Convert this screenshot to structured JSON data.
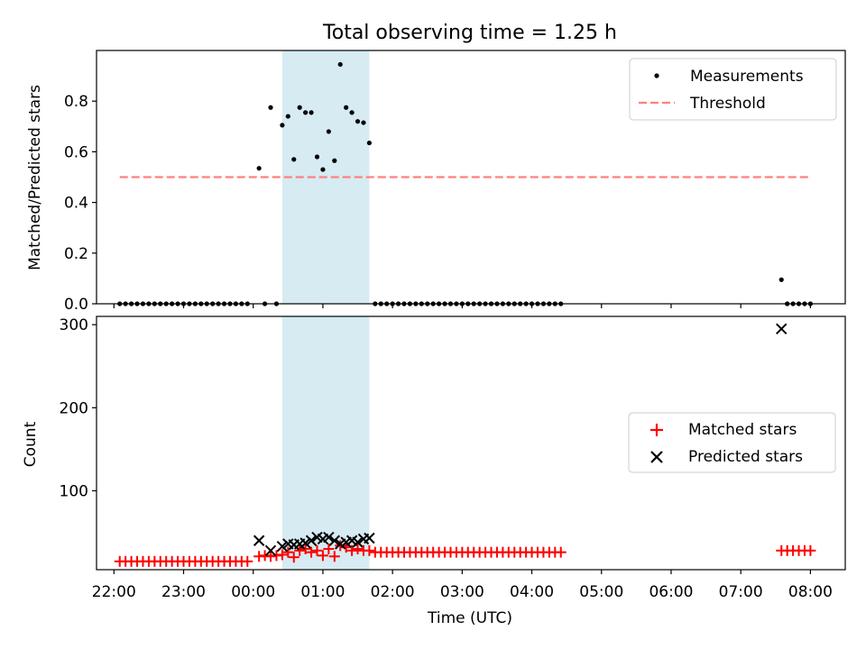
{
  "colors": {
    "measurements": "#000000",
    "threshold": "#ff7f7f",
    "matched": "#ff0000",
    "predicted": "#000000",
    "highlight": "#add8e6"
  },
  "chart_data": [
    {
      "type": "scatter",
      "title": "Total observing time = 1.25 h",
      "xlabel": "",
      "ylabel": "Matched/Predicted stars",
      "ylim": [
        0,
        1.0
      ],
      "yticks": [
        "0.0",
        "0.2",
        "0.4",
        "0.6",
        "0.8"
      ],
      "ytick_values": [
        0,
        0.2,
        0.4,
        0.6,
        0.8
      ],
      "xlim": [
        "21:45",
        "08:30"
      ],
      "highlight_span": [
        "00:25",
        "01:40"
      ],
      "legend_position": "upper right",
      "legend": [
        "Measurements",
        "Threshold"
      ],
      "threshold": {
        "value": 0.5,
        "x": [
          "22:05",
          "08:00"
        ]
      },
      "measurements": [
        {
          "x": "22:05",
          "y": 0
        },
        {
          "x": "22:10",
          "y": 0
        },
        {
          "x": "22:15",
          "y": 0
        },
        {
          "x": "22:20",
          "y": 0
        },
        {
          "x": "22:25",
          "y": 0
        },
        {
          "x": "22:30",
          "y": 0
        },
        {
          "x": "22:35",
          "y": 0
        },
        {
          "x": "22:40",
          "y": 0
        },
        {
          "x": "22:45",
          "y": 0
        },
        {
          "x": "22:50",
          "y": 0
        },
        {
          "x": "22:55",
          "y": 0
        },
        {
          "x": "23:00",
          "y": 0
        },
        {
          "x": "23:05",
          "y": 0
        },
        {
          "x": "23:10",
          "y": 0
        },
        {
          "x": "23:15",
          "y": 0
        },
        {
          "x": "23:20",
          "y": 0
        },
        {
          "x": "23:25",
          "y": 0
        },
        {
          "x": "23:30",
          "y": 0
        },
        {
          "x": "23:35",
          "y": 0
        },
        {
          "x": "23:40",
          "y": 0
        },
        {
          "x": "23:45",
          "y": 0
        },
        {
          "x": "23:50",
          "y": 0
        },
        {
          "x": "23:55",
          "y": 0
        },
        {
          "x": "00:05",
          "y": 0.535
        },
        {
          "x": "00:10",
          "y": 0
        },
        {
          "x": "00:15",
          "y": 0.775
        },
        {
          "x": "00:20",
          "y": 0
        },
        {
          "x": "00:25",
          "y": 0.705
        },
        {
          "x": "00:30",
          "y": 0.74
        },
        {
          "x": "00:35",
          "y": 0.57
        },
        {
          "x": "00:40",
          "y": 0.775
        },
        {
          "x": "00:45",
          "y": 0.755
        },
        {
          "x": "00:50",
          "y": 0.755
        },
        {
          "x": "00:55",
          "y": 0.58
        },
        {
          "x": "01:00",
          "y": 0.53
        },
        {
          "x": "01:05",
          "y": 0.68
        },
        {
          "x": "01:10",
          "y": 0.565
        },
        {
          "x": "01:15",
          "y": 0.945
        },
        {
          "x": "01:20",
          "y": 0.775
        },
        {
          "x": "01:25",
          "y": 0.755
        },
        {
          "x": "01:30",
          "y": 0.72
        },
        {
          "x": "01:35",
          "y": 0.715
        },
        {
          "x": "01:40",
          "y": 0.635
        },
        {
          "x": "01:45",
          "y": 0
        },
        {
          "x": "01:50",
          "y": 0
        },
        {
          "x": "01:55",
          "y": 0
        },
        {
          "x": "02:00",
          "y": 0
        },
        {
          "x": "02:05",
          "y": 0
        },
        {
          "x": "02:10",
          "y": 0
        },
        {
          "x": "02:15",
          "y": 0
        },
        {
          "x": "02:20",
          "y": 0
        },
        {
          "x": "02:25",
          "y": 0
        },
        {
          "x": "02:30",
          "y": 0
        },
        {
          "x": "02:35",
          "y": 0
        },
        {
          "x": "02:40",
          "y": 0
        },
        {
          "x": "02:45",
          "y": 0
        },
        {
          "x": "02:50",
          "y": 0
        },
        {
          "x": "02:55",
          "y": 0
        },
        {
          "x": "03:00",
          "y": 0
        },
        {
          "x": "03:05",
          "y": 0
        },
        {
          "x": "03:10",
          "y": 0
        },
        {
          "x": "03:15",
          "y": 0
        },
        {
          "x": "03:20",
          "y": 0
        },
        {
          "x": "03:25",
          "y": 0
        },
        {
          "x": "03:30",
          "y": 0
        },
        {
          "x": "03:35",
          "y": 0
        },
        {
          "x": "03:40",
          "y": 0
        },
        {
          "x": "03:45",
          "y": 0
        },
        {
          "x": "03:50",
          "y": 0
        },
        {
          "x": "03:55",
          "y": 0
        },
        {
          "x": "04:00",
          "y": 0
        },
        {
          "x": "04:05",
          "y": 0
        },
        {
          "x": "04:10",
          "y": 0
        },
        {
          "x": "04:15",
          "y": 0
        },
        {
          "x": "04:20",
          "y": 0
        },
        {
          "x": "04:25",
          "y": 0
        },
        {
          "x": "07:35",
          "y": 0.095
        },
        {
          "x": "07:40",
          "y": 0
        },
        {
          "x": "07:45",
          "y": 0
        },
        {
          "x": "07:50",
          "y": 0
        },
        {
          "x": "07:55",
          "y": 0
        },
        {
          "x": "08:00",
          "y": 0
        }
      ]
    },
    {
      "type": "scatter",
      "title": "",
      "xlabel": "Time (UTC)",
      "ylabel": "Count",
      "ylim": [
        5,
        310
      ],
      "yticks": [
        "100",
        "200",
        "300"
      ],
      "ytick_values": [
        100,
        200,
        300
      ],
      "xlim": [
        "21:45",
        "08:30"
      ],
      "xticks": [
        "22:00",
        "23:00",
        "00:00",
        "01:00",
        "02:00",
        "03:00",
        "04:00",
        "05:00",
        "06:00",
        "07:00",
        "08:00"
      ],
      "highlight_span": [
        "00:25",
        "01:40"
      ],
      "legend_position": "center right",
      "legend": [
        "Matched stars",
        "Predicted stars"
      ],
      "matched": [
        {
          "x": "22:05",
          "y": 15
        },
        {
          "x": "22:10",
          "y": 15
        },
        {
          "x": "22:15",
          "y": 15
        },
        {
          "x": "22:20",
          "y": 15
        },
        {
          "x": "22:25",
          "y": 15
        },
        {
          "x": "22:30",
          "y": 15
        },
        {
          "x": "22:35",
          "y": 15
        },
        {
          "x": "22:40",
          "y": 15
        },
        {
          "x": "22:45",
          "y": 15
        },
        {
          "x": "22:50",
          "y": 15
        },
        {
          "x": "22:55",
          "y": 15
        },
        {
          "x": "23:00",
          "y": 15
        },
        {
          "x": "23:05",
          "y": 15
        },
        {
          "x": "23:10",
          "y": 15
        },
        {
          "x": "23:15",
          "y": 15
        },
        {
          "x": "23:20",
          "y": 15
        },
        {
          "x": "23:25",
          "y": 15
        },
        {
          "x": "23:30",
          "y": 15
        },
        {
          "x": "23:35",
          "y": 15
        },
        {
          "x": "23:40",
          "y": 15
        },
        {
          "x": "23:45",
          "y": 15
        },
        {
          "x": "23:50",
          "y": 15
        },
        {
          "x": "23:55",
          "y": 15
        },
        {
          "x": "00:05",
          "y": 21
        },
        {
          "x": "00:10",
          "y": 22
        },
        {
          "x": "00:15",
          "y": 21
        },
        {
          "x": "00:20",
          "y": 22
        },
        {
          "x": "00:25",
          "y": 23
        },
        {
          "x": "00:30",
          "y": 26
        },
        {
          "x": "00:35",
          "y": 20
        },
        {
          "x": "00:40",
          "y": 28
        },
        {
          "x": "00:45",
          "y": 30
        },
        {
          "x": "00:50",
          "y": 26
        },
        {
          "x": "00:55",
          "y": 28
        },
        {
          "x": "01:00",
          "y": 22
        },
        {
          "x": "01:05",
          "y": 30
        },
        {
          "x": "01:10",
          "y": 21
        },
        {
          "x": "01:15",
          "y": 34
        },
        {
          "x": "01:20",
          "y": 32
        },
        {
          "x": "01:25",
          "y": 28
        },
        {
          "x": "01:30",
          "y": 30
        },
        {
          "x": "01:35",
          "y": 28
        },
        {
          "x": "01:40",
          "y": 28
        },
        {
          "x": "01:45",
          "y": 26
        },
        {
          "x": "01:50",
          "y": 26
        },
        {
          "x": "01:55",
          "y": 26
        },
        {
          "x": "02:00",
          "y": 26
        },
        {
          "x": "02:05",
          "y": 26
        },
        {
          "x": "02:10",
          "y": 26
        },
        {
          "x": "02:15",
          "y": 26
        },
        {
          "x": "02:20",
          "y": 26
        },
        {
          "x": "02:25",
          "y": 26
        },
        {
          "x": "02:30",
          "y": 26
        },
        {
          "x": "02:35",
          "y": 26
        },
        {
          "x": "02:40",
          "y": 26
        },
        {
          "x": "02:45",
          "y": 26
        },
        {
          "x": "02:50",
          "y": 26
        },
        {
          "x": "02:55",
          "y": 26
        },
        {
          "x": "03:00",
          "y": 26
        },
        {
          "x": "03:05",
          "y": 26
        },
        {
          "x": "03:10",
          "y": 26
        },
        {
          "x": "03:15",
          "y": 26
        },
        {
          "x": "03:20",
          "y": 26
        },
        {
          "x": "03:25",
          "y": 26
        },
        {
          "x": "03:30",
          "y": 26
        },
        {
          "x": "03:35",
          "y": 26
        },
        {
          "x": "03:40",
          "y": 26
        },
        {
          "x": "03:45",
          "y": 26
        },
        {
          "x": "03:50",
          "y": 26
        },
        {
          "x": "03:55",
          "y": 26
        },
        {
          "x": "04:00",
          "y": 26
        },
        {
          "x": "04:05",
          "y": 26
        },
        {
          "x": "04:10",
          "y": 26
        },
        {
          "x": "04:15",
          "y": 26
        },
        {
          "x": "04:20",
          "y": 26
        },
        {
          "x": "04:25",
          "y": 26
        },
        {
          "x": "07:35",
          "y": 28
        },
        {
          "x": "07:40",
          "y": 28
        },
        {
          "x": "07:45",
          "y": 28
        },
        {
          "x": "07:50",
          "y": 28
        },
        {
          "x": "07:55",
          "y": 28
        },
        {
          "x": "08:00",
          "y": 28
        }
      ],
      "predicted": [
        {
          "x": "00:05",
          "y": 40
        },
        {
          "x": "00:15",
          "y": 28
        },
        {
          "x": "00:25",
          "y": 33
        },
        {
          "x": "00:30",
          "y": 36
        },
        {
          "x": "00:35",
          "y": 35
        },
        {
          "x": "00:40",
          "y": 36
        },
        {
          "x": "00:45",
          "y": 37
        },
        {
          "x": "00:50",
          "y": 40
        },
        {
          "x": "00:55",
          "y": 44
        },
        {
          "x": "01:00",
          "y": 42
        },
        {
          "x": "01:05",
          "y": 44
        },
        {
          "x": "01:10",
          "y": 40
        },
        {
          "x": "01:15",
          "y": 36
        },
        {
          "x": "01:20",
          "y": 38
        },
        {
          "x": "01:25",
          "y": 40
        },
        {
          "x": "01:30",
          "y": 38
        },
        {
          "x": "01:35",
          "y": 42
        },
        {
          "x": "01:40",
          "y": 43
        },
        {
          "x": "07:35",
          "y": 295
        }
      ]
    }
  ]
}
